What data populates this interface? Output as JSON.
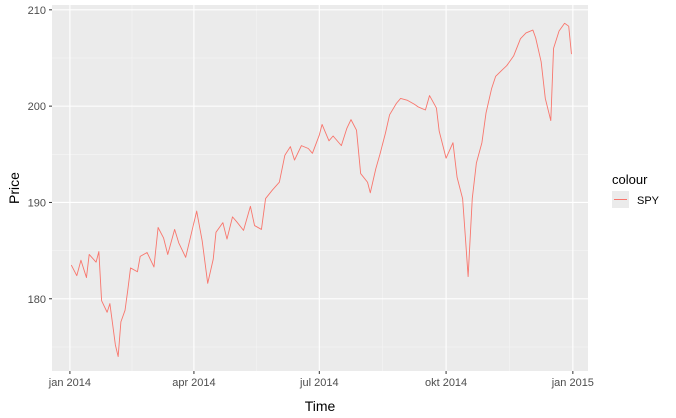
{
  "chart_data": {
    "type": "line",
    "title": "",
    "xlabel": "Time",
    "ylabel": "Price",
    "xlim": [
      "2013-12-19",
      "2015-01-12"
    ],
    "ylim": [
      172.5,
      210.5
    ],
    "x_ticks": [
      {
        "date": "2014-01-01",
        "label": "jan 2014"
      },
      {
        "date": "2014-04-01",
        "label": "apr 2014"
      },
      {
        "date": "2014-07-01",
        "label": "jul 2014"
      },
      {
        "date": "2014-10-01",
        "label": "okt 2014"
      },
      {
        "date": "2015-01-01",
        "label": "jan 2015"
      }
    ],
    "y_ticks": [
      180,
      190,
      200,
      210
    ],
    "grid": true,
    "legend": {
      "title": "colour",
      "position": "right"
    },
    "series": [
      {
        "name": "SPY",
        "color": "#f8766d",
        "points": [
          [
            "2014-01-02",
            183.5
          ],
          [
            "2014-01-06",
            182.4
          ],
          [
            "2014-01-09",
            184.0
          ],
          [
            "2014-01-13",
            182.2
          ],
          [
            "2014-01-15",
            184.6
          ],
          [
            "2014-01-20",
            183.8
          ],
          [
            "2014-01-22",
            184.9
          ],
          [
            "2014-01-24",
            179.8
          ],
          [
            "2014-01-28",
            178.6
          ],
          [
            "2014-01-30",
            179.5
          ],
          [
            "2014-02-03",
            175.2
          ],
          [
            "2014-02-05",
            174.0
          ],
          [
            "2014-02-07",
            177.6
          ],
          [
            "2014-02-10",
            178.8
          ],
          [
            "2014-02-12",
            180.9
          ],
          [
            "2014-02-14",
            183.2
          ],
          [
            "2014-02-19",
            182.8
          ],
          [
            "2014-02-21",
            184.4
          ],
          [
            "2014-02-26",
            184.8
          ],
          [
            "2014-03-03",
            183.3
          ],
          [
            "2014-03-06",
            187.4
          ],
          [
            "2014-03-10",
            186.3
          ],
          [
            "2014-03-13",
            184.6
          ],
          [
            "2014-03-18",
            187.2
          ],
          [
            "2014-03-21",
            185.8
          ],
          [
            "2014-03-26",
            184.3
          ],
          [
            "2014-03-31",
            187.3
          ],
          [
            "2014-04-03",
            189.1
          ],
          [
            "2014-04-07",
            186.0
          ],
          [
            "2014-04-11",
            181.6
          ],
          [
            "2014-04-15",
            184.1
          ],
          [
            "2014-04-17",
            186.9
          ],
          [
            "2014-04-22",
            187.9
          ],
          [
            "2014-04-25",
            186.2
          ],
          [
            "2014-04-29",
            188.5
          ],
          [
            "2014-05-02",
            188.0
          ],
          [
            "2014-05-07",
            187.1
          ],
          [
            "2014-05-12",
            189.6
          ],
          [
            "2014-05-15",
            187.6
          ],
          [
            "2014-05-20",
            187.2
          ],
          [
            "2014-05-23",
            190.4
          ],
          [
            "2014-05-28",
            191.3
          ],
          [
            "2014-06-02",
            192.1
          ],
          [
            "2014-06-06",
            194.9
          ],
          [
            "2014-06-10",
            195.8
          ],
          [
            "2014-06-13",
            194.4
          ],
          [
            "2014-06-18",
            195.9
          ],
          [
            "2014-06-23",
            195.6
          ],
          [
            "2014-06-26",
            195.1
          ],
          [
            "2014-07-01",
            197.0
          ],
          [
            "2014-07-03",
            198.1
          ],
          [
            "2014-07-08",
            196.4
          ],
          [
            "2014-07-11",
            196.9
          ],
          [
            "2014-07-17",
            195.9
          ],
          [
            "2014-07-21",
            197.7
          ],
          [
            "2014-07-24",
            198.6
          ],
          [
            "2014-07-28",
            197.5
          ],
          [
            "2014-07-31",
            193.0
          ],
          [
            "2014-08-05",
            192.1
          ],
          [
            "2014-08-07",
            191.0
          ],
          [
            "2014-08-11",
            193.5
          ],
          [
            "2014-08-14",
            195.0
          ],
          [
            "2014-08-18",
            197.2
          ],
          [
            "2014-08-21",
            199.1
          ],
          [
            "2014-08-26",
            200.3
          ],
          [
            "2014-08-29",
            200.8
          ],
          [
            "2014-09-03",
            200.6
          ],
          [
            "2014-09-08",
            200.2
          ],
          [
            "2014-09-11",
            199.9
          ],
          [
            "2014-09-16",
            199.6
          ],
          [
            "2014-09-19",
            201.1
          ],
          [
            "2014-09-24",
            199.8
          ],
          [
            "2014-09-26",
            197.4
          ],
          [
            "2014-10-01",
            194.6
          ],
          [
            "2014-10-06",
            196.2
          ],
          [
            "2014-10-09",
            192.6
          ],
          [
            "2014-10-13",
            190.4
          ],
          [
            "2014-10-15",
            186.4
          ],
          [
            "2014-10-17",
            182.3
          ],
          [
            "2014-10-20",
            190.4
          ],
          [
            "2014-10-23",
            194.1
          ],
          [
            "2014-10-27",
            196.2
          ],
          [
            "2014-10-30",
            199.3
          ],
          [
            "2014-11-03",
            201.8
          ],
          [
            "2014-11-06",
            203.1
          ],
          [
            "2014-11-11",
            203.8
          ],
          [
            "2014-11-14",
            204.2
          ],
          [
            "2014-11-19",
            205.2
          ],
          [
            "2014-11-24",
            207.0
          ],
          [
            "2014-11-28",
            207.6
          ],
          [
            "2014-12-03",
            207.9
          ],
          [
            "2014-12-05",
            207.1
          ],
          [
            "2014-12-09",
            204.6
          ],
          [
            "2014-12-12",
            200.8
          ],
          [
            "2014-12-16",
            198.5
          ],
          [
            "2014-12-18",
            206.0
          ],
          [
            "2014-12-22",
            207.8
          ],
          [
            "2014-12-26",
            208.6
          ],
          [
            "2014-12-29",
            208.3
          ],
          [
            "2014-12-31",
            205.4
          ]
        ]
      }
    ]
  }
}
